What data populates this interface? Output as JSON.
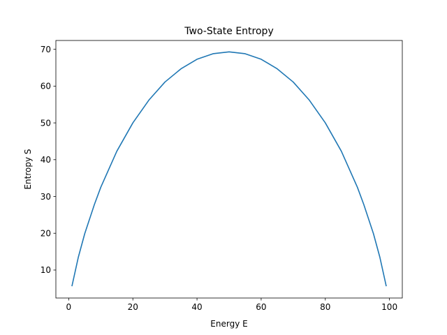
{
  "chart_data": {
    "type": "line",
    "title": "Two-State Entropy",
    "xlabel": "Energy E",
    "ylabel": "Entropy S",
    "xlim": [
      -4,
      104
    ],
    "ylim": [
      2.4,
      72.4
    ],
    "xticks": [
      0,
      20,
      40,
      60,
      80,
      100
    ],
    "yticks": [
      10,
      20,
      30,
      40,
      50,
      60,
      70
    ],
    "xtick_labels": [
      "0",
      "20",
      "40",
      "60",
      "80",
      "100"
    ],
    "ytick_labels": [
      "10",
      "20",
      "30",
      "40",
      "50",
      "60",
      "70"
    ],
    "grid": false,
    "series": [
      {
        "color": "#1f77b4",
        "x": [
          1,
          3,
          5,
          8,
          10,
          15,
          20,
          25,
          30,
          35,
          40,
          45,
          50,
          55,
          60,
          65,
          70,
          75,
          80,
          85,
          90,
          92,
          95,
          97,
          99
        ],
        "y": [
          5.6,
          13.5,
          19.9,
          27.8,
          32.5,
          42.3,
          50.0,
          56.2,
          61.1,
          64.7,
          67.3,
          68.8,
          69.3,
          68.8,
          67.3,
          64.7,
          61.1,
          56.2,
          50.0,
          42.3,
          32.5,
          27.8,
          19.9,
          13.5,
          5.6
        ]
      }
    ]
  }
}
